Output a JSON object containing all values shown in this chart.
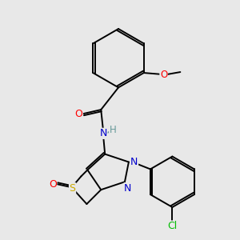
{
  "background_color": "#e8e8e8",
  "bond_color": "#000000",
  "atom_colors": {
    "O": "#ff0000",
    "N": "#0000cc",
    "S": "#ccaa00",
    "Cl": "#00bb00",
    "H": "#669999",
    "C": "#000000"
  },
  "figsize": [
    3.0,
    3.0
  ],
  "dpi": 100
}
